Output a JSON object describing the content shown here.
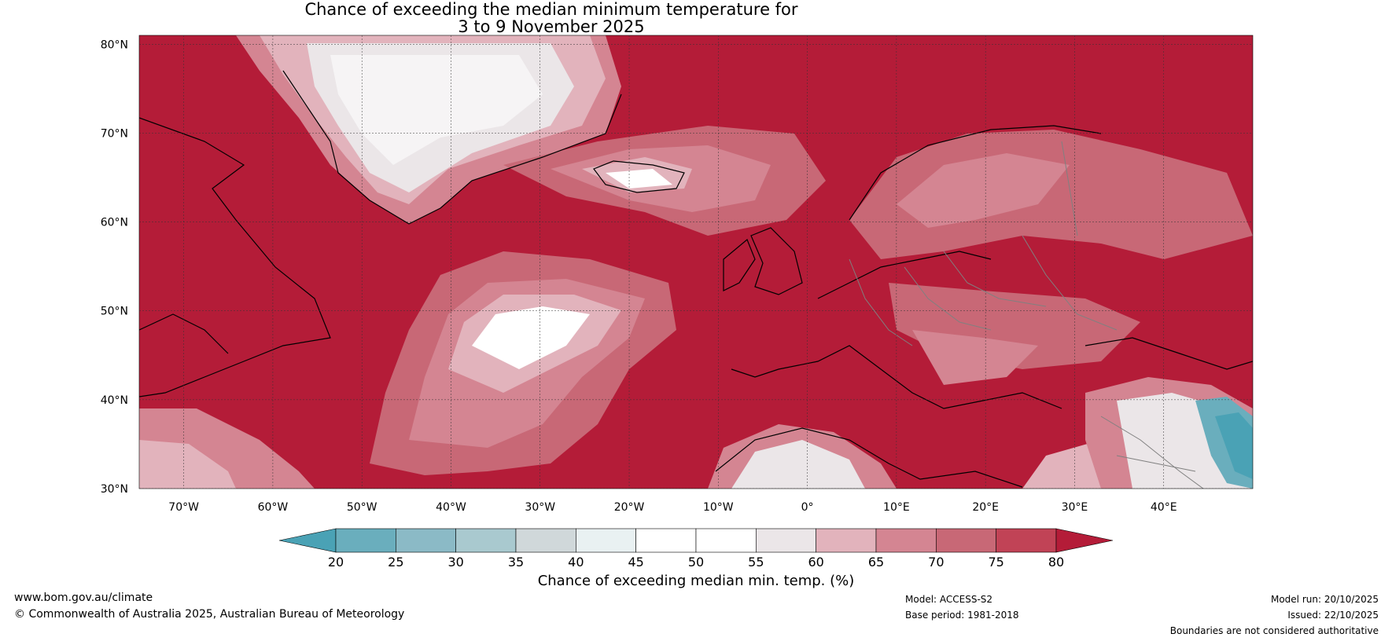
{
  "title": {
    "line1": "Chance of exceeding the median minimum temperature for",
    "line2": "3 to 9 November 2025"
  },
  "map": {
    "lon_range": [
      -75,
      50
    ],
    "lat_range": [
      30,
      81
    ],
    "lat_ticks": [
      "80°N",
      "70°N",
      "60°N",
      "50°N",
      "40°N",
      "30°N"
    ],
    "lon_ticks": [
      "70°W",
      "60°W",
      "50°W",
      "40°W",
      "30°W",
      "20°W",
      "10°W",
      "0°",
      "10°E",
      "20°E",
      "30°E",
      "40°E"
    ],
    "grid": true,
    "background_class": "80+",
    "regions": [
      {
        "name": "Greenland interior",
        "class": "45-60"
      },
      {
        "name": "Iceland",
        "class": "45-60"
      },
      {
        "name": "central North Atlantic",
        "class": "45-65"
      },
      {
        "name": "Scandinavia",
        "class": "65-80"
      },
      {
        "name": "North Africa",
        "class": "45-65"
      },
      {
        "name": "Caspian region",
        "class": "20-35"
      }
    ]
  },
  "colorbar": {
    "label": "Chance of exceeding median min. temp. (%)",
    "ticks": [
      "20",
      "25",
      "30",
      "35",
      "40",
      "45",
      "50",
      "55",
      "60",
      "65",
      "70",
      "75",
      "80"
    ],
    "colors": [
      "#4aa2b5",
      "#6aaebd",
      "#8bbac6",
      "#a9c9cf",
      "#d0d8da",
      "#e9f1f2",
      "#ffffff",
      "#ffffff",
      "#ebe6e8",
      "#e2b3bc",
      "#d48592",
      "#c86876",
      "#c14356",
      "#b41c38"
    ]
  },
  "footer": {
    "website": "www.bom.gov.au/climate",
    "copyright": "© Commonwealth of Australia 2025, Australian Bureau of Meteorology",
    "model": "Model: ACCESS-S2",
    "base_period": "Base period: 1981-2018",
    "model_run": "Model run: 20/10/2025",
    "issued": "Issued: 22/10/2025",
    "disclaimer": "Boundaries are not considered authoritative"
  },
  "colors": {
    "high": "#b41c38",
    "coast": "#000000",
    "border": "#808080"
  }
}
